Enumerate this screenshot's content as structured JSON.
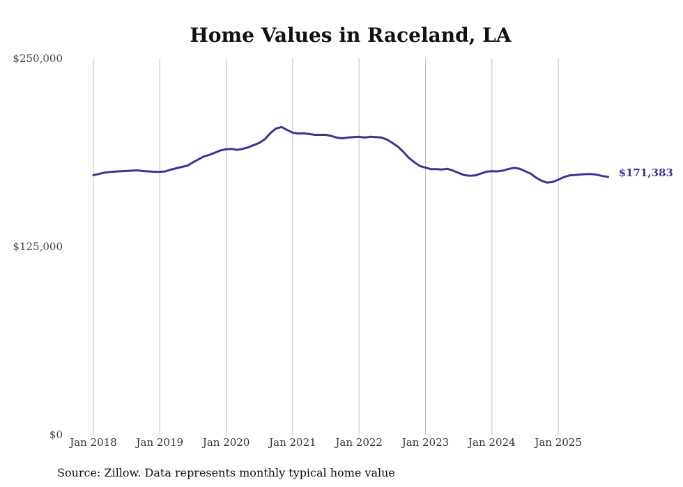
{
  "chart_data": {
    "type": "line",
    "title": "Home Values in Raceland, LA",
    "source": "Source: Zillow. Data represents monthly typical home value",
    "xlabel": "",
    "ylabel": "",
    "ylim": [
      0,
      250000
    ],
    "yticks": [
      {
        "value": 0,
        "label": "$0"
      },
      {
        "value": 125000,
        "label": "$125,000"
      },
      {
        "value": 250000,
        "label": "$250,000"
      }
    ],
    "xticks": [
      "Jan 2018",
      "Jan 2019",
      "Jan 2020",
      "Jan 2021",
      "Jan 2022",
      "Jan 2023",
      "Jan 2024",
      "Jan 2025"
    ],
    "x_start": "2018-01",
    "grid": "vertical",
    "line_color": "#3d3393",
    "end_label": "$171,383",
    "series": [
      {
        "values": [
          172500,
          173300,
          174200,
          174600,
          174900,
          175100,
          175300,
          175500,
          175700,
          175200,
          175000,
          174700,
          174700,
          175000,
          176200,
          177100,
          178000,
          178800,
          181000,
          183000,
          185000,
          186000,
          187500,
          189000,
          189700,
          189900,
          189300,
          190000,
          191000,
          192500,
          194000,
          196500,
          200500,
          203500,
          204500,
          202500,
          200800,
          200200,
          200300,
          199800,
          199300,
          199300,
          199300,
          198500,
          197400,
          197000,
          197500,
          197800,
          198000,
          197500,
          198000,
          197800,
          197500,
          196200,
          194000,
          191500,
          188000,
          184000,
          181000,
          178500,
          177500,
          176500,
          176500,
          176300,
          176700,
          175500,
          174000,
          172500,
          172100,
          172300,
          173500,
          174800,
          175100,
          175000,
          175500,
          176600,
          177300,
          176800,
          175200,
          173500,
          170800,
          168700,
          167500,
          168000,
          169500,
          171200,
          172300,
          172600,
          172900,
          173200,
          173200,
          172800,
          171900,
          171383
        ]
      }
    ]
  }
}
